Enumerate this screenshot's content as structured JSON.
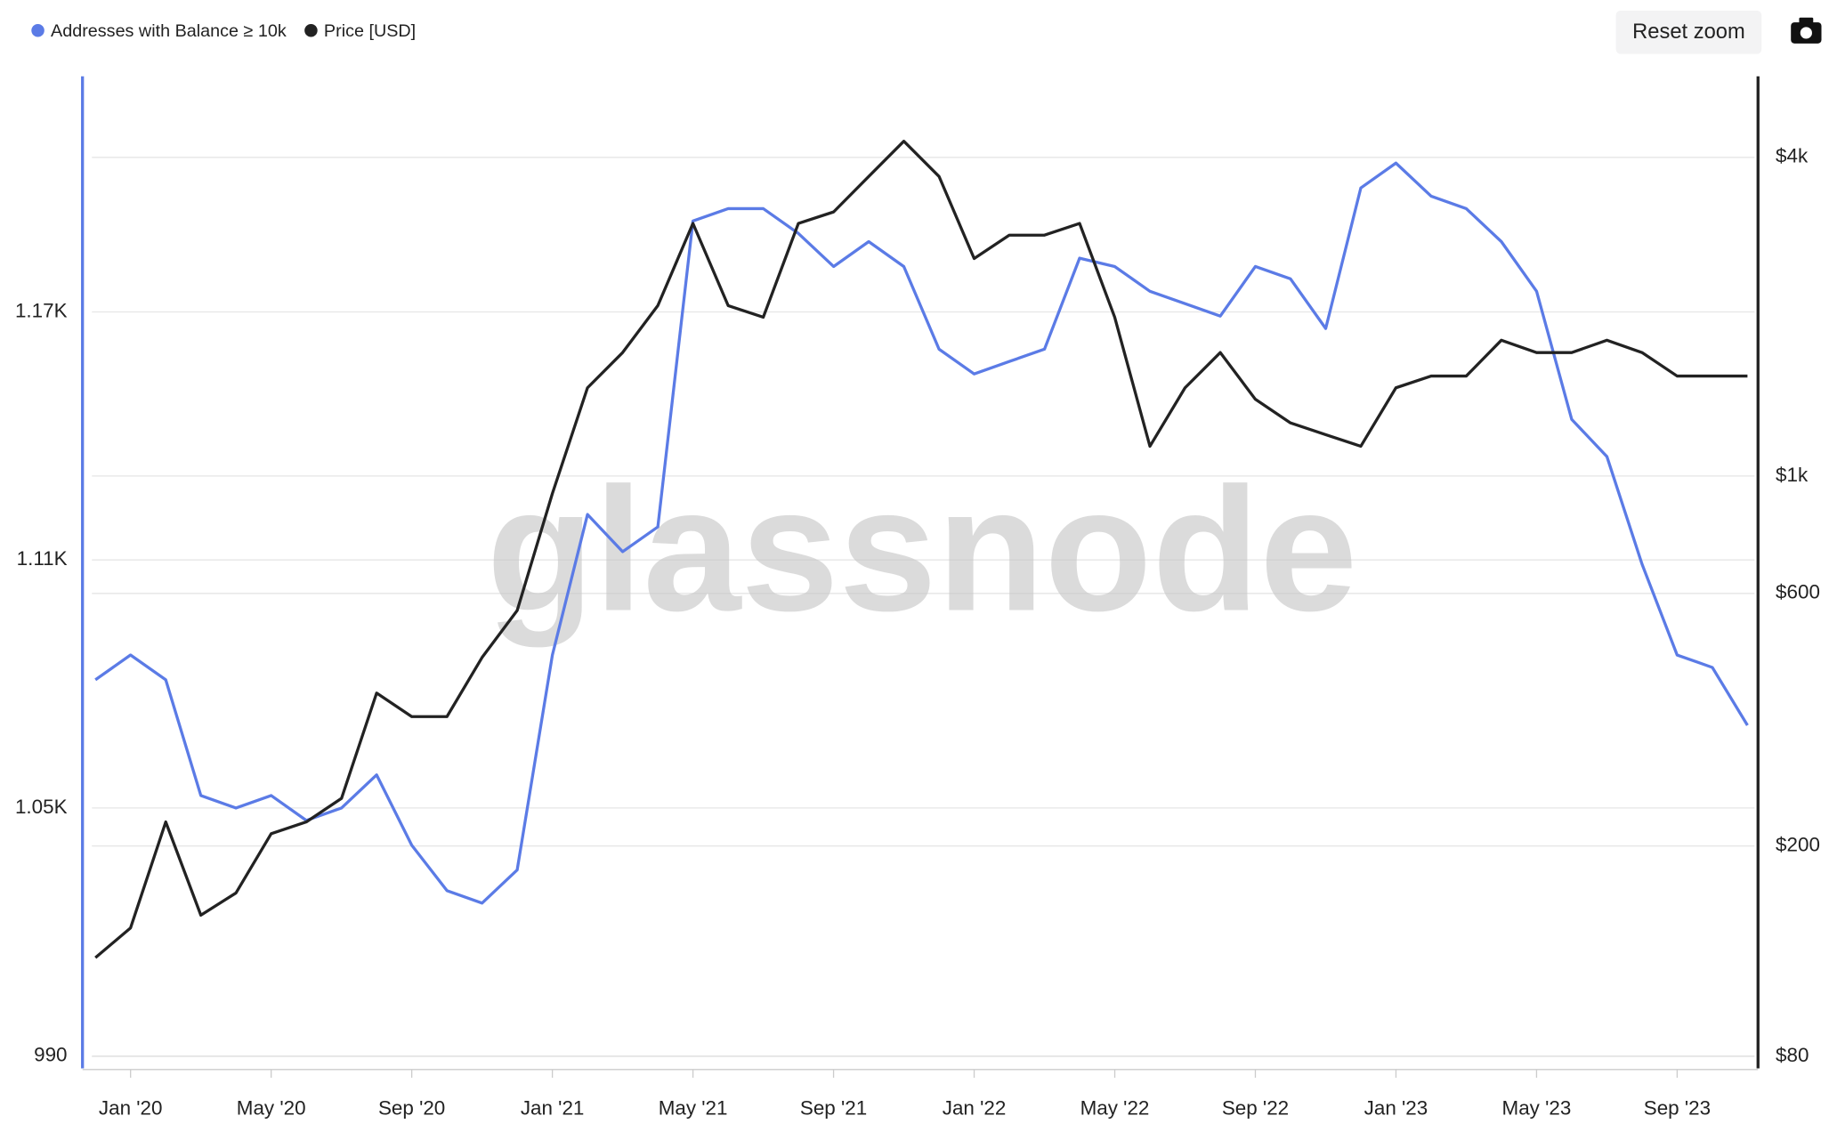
{
  "chart_data": {
    "type": "line",
    "watermark": "glassnode",
    "x": [
      "2019-12",
      "2020-01",
      "2020-02",
      "2020-03",
      "2020-04",
      "2020-05",
      "2020-06",
      "2020-07",
      "2020-08",
      "2020-09",
      "2020-10",
      "2020-11",
      "2020-12",
      "2021-01",
      "2021-02",
      "2021-03",
      "2021-04",
      "2021-05",
      "2021-06",
      "2021-07",
      "2021-08",
      "2021-09",
      "2021-10",
      "2021-11",
      "2021-12",
      "2022-01",
      "2022-02",
      "2022-03",
      "2022-04",
      "2022-05",
      "2022-06",
      "2022-07",
      "2022-08",
      "2022-09",
      "2022-10",
      "2022-11",
      "2022-12",
      "2023-01",
      "2023-02",
      "2023-03",
      "2023-04",
      "2023-05",
      "2023-06",
      "2023-07",
      "2023-08",
      "2023-09",
      "2023-10",
      "2023-11"
    ],
    "xlim": [
      "2019-12",
      "2023-11"
    ],
    "xticks": [
      {
        "value": "2020-01",
        "label": "Jan '20"
      },
      {
        "value": "2020-05",
        "label": "May '20"
      },
      {
        "value": "2020-09",
        "label": "Sep '20"
      },
      {
        "value": "2021-01",
        "label": "Jan '21"
      },
      {
        "value": "2021-05",
        "label": "May '21"
      },
      {
        "value": "2021-09",
        "label": "Sep '21"
      },
      {
        "value": "2022-01",
        "label": "Jan '22"
      },
      {
        "value": "2022-05",
        "label": "May '22"
      },
      {
        "value": "2022-09",
        "label": "Sep '22"
      },
      {
        "value": "2023-01",
        "label": "Jan '23"
      },
      {
        "value": "2023-05",
        "label": "May '23"
      },
      {
        "value": "2023-09",
        "label": "Sep '23"
      }
    ],
    "ylim": [
      987,
      1227
    ],
    "yticks": [
      990,
      {
        "value": 1050,
        "label": "1.05K"
      },
      {
        "value": 1110,
        "label": "1.11K"
      },
      {
        "value": 1170,
        "label": "1.17K"
      }
    ],
    "y2lim": [
      76,
      5690
    ],
    "y2log": true,
    "y2ticks": [
      {
        "value": 80,
        "label": "$80"
      },
      {
        "value": 200,
        "label": "$200"
      },
      {
        "value": 600,
        "label": "$600"
      },
      {
        "value": 1000,
        "label": "$1k"
      },
      {
        "value": 4000,
        "label": "$4k"
      }
    ],
    "series": [
      {
        "name": "Addresses with Balance ≥ 10k",
        "color": "#5b7be6",
        "axis": "y",
        "values": [
          1081,
          1087,
          1081,
          1053,
          1050,
          1053,
          1047,
          1050,
          1058,
          1041,
          1030,
          1027,
          1035,
          1087,
          1121,
          1112,
          1118,
          1192,
          1195,
          1195,
          1189,
          1181,
          1187,
          1181,
          1161,
          1155,
          1158,
          1161,
          1183,
          1181,
          1175,
          1172,
          1169,
          1181,
          1178,
          1166,
          1200,
          1206,
          1198,
          1195,
          1187,
          1175,
          1144,
          1135,
          1109,
          1087,
          1084,
          1070
        ]
      },
      {
        "name": "Price [USD]",
        "color": "#222222",
        "axis": "y2",
        "values": [
          123,
          140,
          222,
          148,
          163,
          211,
          222,
          246,
          389,
          351,
          351,
          454,
          557,
          927,
          1468,
          1711,
          2099,
          3000,
          2099,
          1995,
          3000,
          3155,
          3680,
          4290,
          3680,
          2576,
          2851,
          2851,
          3000,
          1995,
          1138,
          1468,
          1711,
          1396,
          1260,
          1197,
          1138,
          1468,
          1545,
          1545,
          1805,
          1711,
          1711,
          1805,
          1711,
          1545,
          1545,
          1545
        ]
      }
    ]
  },
  "controls": {
    "reset_zoom": "Reset zoom"
  }
}
